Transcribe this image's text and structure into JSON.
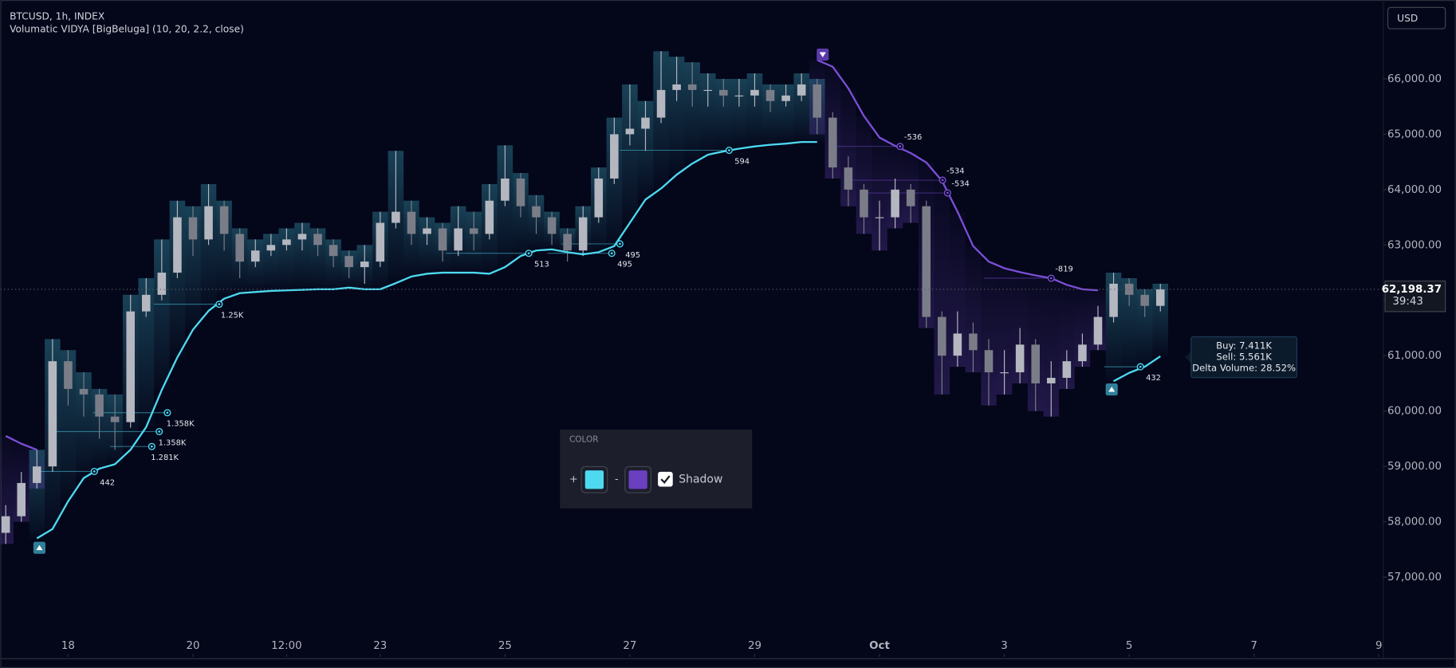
{
  "header": {
    "symbol": "BTCUSD, 1h, INDEX",
    "indicator": "Volumatic VIDYA [BigBeluga] (10, 20, 2.2, close)",
    "currency": "USD"
  },
  "chart_data": {
    "type": "candlestick",
    "x": [
      17,
      17.25,
      17.5,
      17.75,
      18,
      18.25,
      18.5,
      18.75,
      19,
      19.25,
      19.5,
      19.75,
      20,
      20.25,
      20.5,
      20.75,
      21,
      21.25,
      21.5,
      21.75,
      22,
      22.25,
      22.5,
      22.75,
      23,
      23.25,
      23.5,
      23.75,
      24,
      24.25,
      24.5,
      24.75,
      25,
      25.25,
      25.5,
      25.75,
      26,
      26.25,
      26.5,
      26.75,
      27,
      27.25,
      27.5,
      27.75,
      28,
      28.25,
      28.5,
      28.75,
      29,
      29.25,
      29.5,
      29.75,
      30,
      30.25,
      30.5,
      30.75,
      31,
      31.25,
      31.5,
      31.75,
      32,
      32.25,
      32.5,
      32.75,
      33,
      33.25,
      33.5,
      33.75,
      34,
      34.25,
      34.5,
      34.75,
      35,
      35.25,
      35.5
    ],
    "open": [
      57800,
      58100,
      58700,
      59000,
      60900,
      60400,
      60300,
      59900,
      59800,
      61800,
      62100,
      62500,
      63500,
      63100,
      63700,
      63200,
      62700,
      62900,
      63000,
      63100,
      63200,
      63000,
      62800,
      62600,
      62700,
      63400,
      63600,
      63200,
      63300,
      62900,
      63300,
      63200,
      63800,
      64200,
      63700,
      63500,
      63200,
      62900,
      63500,
      64200,
      65000,
      65100,
      65300,
      65800,
      65900,
      65800,
      65800,
      65700,
      65700,
      65800,
      65600,
      65700,
      65900,
      65300,
      64400,
      64000,
      63500,
      63500,
      64000,
      63700,
      61700,
      61000,
      61400,
      61100,
      60700,
      60700,
      61200,
      60500,
      60600,
      60900,
      61200,
      61700,
      62300,
      62100,
      61900
    ],
    "high": [
      58300,
      58900,
      59300,
      61300,
      61100,
      60700,
      60400,
      60300,
      62100,
      62400,
      63100,
      63800,
      63700,
      64100,
      63800,
      63300,
      63100,
      63200,
      63300,
      63400,
      63300,
      63100,
      62900,
      63000,
      63600,
      64700,
      63800,
      63500,
      63400,
      63700,
      63600,
      64100,
      64800,
      64300,
      63900,
      63600,
      63300,
      63700,
      64400,
      65300,
      65900,
      65600,
      66500,
      66400,
      66300,
      66100,
      66000,
      66000,
      66100,
      65900,
      65900,
      66100,
      66000,
      65400,
      64600,
      64100,
      63800,
      64200,
      64100,
      63800,
      61800,
      61800,
      61600,
      61300,
      61100,
      61500,
      61300,
      60900,
      61100,
      61400,
      61900,
      62500,
      62400,
      62200,
      62300
    ],
    "low": [
      57600,
      58000,
      58600,
      58900,
      60100,
      59900,
      59500,
      59300,
      59700,
      61700,
      62000,
      62400,
      62800,
      63000,
      62900,
      62400,
      62600,
      62800,
      62900,
      62900,
      62800,
      62600,
      62400,
      62300,
      62600,
      63300,
      63000,
      63000,
      62700,
      62800,
      62900,
      63100,
      63700,
      63500,
      63200,
      63000,
      62700,
      62800,
      63400,
      64100,
      64800,
      64700,
      65200,
      65600,
      65500,
      65500,
      65500,
      65500,
      65500,
      65400,
      65500,
      65600,
      65000,
      64200,
      63700,
      63200,
      62900,
      63300,
      63400,
      61500,
      60300,
      60800,
      60700,
      60100,
      60300,
      60500,
      60000,
      59900,
      60400,
      60800,
      61100,
      61600,
      61900,
      61700,
      61800
    ],
    "close": [
      58100,
      58700,
      59000,
      60900,
      60400,
      60300,
      59900,
      59800,
      61800,
      62100,
      62500,
      63500,
      63100,
      63700,
      63200,
      62700,
      62900,
      63000,
      63100,
      63200,
      63000,
      62800,
      62600,
      62700,
      63400,
      63600,
      63200,
      63300,
      62900,
      63300,
      63200,
      63800,
      64200,
      63700,
      63500,
      63200,
      62900,
      63500,
      64200,
      65000,
      65100,
      65300,
      65800,
      65900,
      65800,
      65800,
      65700,
      65700,
      65800,
      65600,
      65700,
      65900,
      65300,
      64400,
      64000,
      63500,
      63500,
      64000,
      63700,
      61700,
      61000,
      61400,
      61100,
      60700,
      60700,
      61200,
      60500,
      60600,
      60900,
      61200,
      61700,
      62300,
      62100,
      61900,
      62198.37
    ],
    "up_color": "#b4b7c0",
    "down_color": "#7a7d88",
    "last_label": "62,198.37",
    "countdown": "39:43",
    "overlays": [
      {
        "color": "#4dd9f0",
        "values": [
          null,
          null,
          57700,
          57870,
          58370,
          58790,
          58960,
          59040,
          59300,
          59710,
          60380,
          60970,
          61470,
          61810,
          62030,
          62130,
          62150,
          62170,
          62180,
          62190,
          62200,
          62200,
          62230,
          62200,
          62200,
          62310,
          62430,
          62480,
          62500,
          62500,
          62500,
          62480,
          62600,
          62800,
          62900,
          62920,
          62870,
          62830,
          62870,
          62980,
          63400,
          63820,
          64020,
          64270,
          64470,
          64630,
          64690,
          64740,
          64780,
          64810,
          64830,
          64860,
          64860,
          null,
          null,
          null,
          null,
          null,
          null,
          null,
          null,
          null,
          null,
          null,
          null,
          null,
          null,
          null,
          null,
          null,
          null,
          60540,
          60690,
          60800,
          60990
        ]
      },
      {
        "color": "#7b4fd6",
        "values": [
          59550,
          59410,
          59300,
          null,
          null,
          null,
          null,
          null,
          null,
          null,
          null,
          null,
          null,
          null,
          null,
          null,
          null,
          null,
          null,
          null,
          null,
          null,
          null,
          null,
          null,
          null,
          null,
          null,
          null,
          null,
          null,
          null,
          null,
          null,
          null,
          null,
          null,
          null,
          null,
          null,
          null,
          null,
          null,
          null,
          null,
          null,
          null,
          null,
          null,
          null,
          null,
          null,
          66340,
          66220,
          65830,
          65330,
          64940,
          64790,
          64660,
          64490,
          64160,
          63600,
          62980,
          62700,
          62580,
          62510,
          62450,
          62400,
          62280,
          62200,
          62180,
          null,
          null,
          null,
          null
        ]
      }
    ],
    "annotations": [
      {
        "x": 18.42,
        "x0": 17.54,
        "y": 58910,
        "text": "442",
        "color": "#4dd9f0"
      },
      {
        "x": 19.59,
        "x0": 18.4,
        "y": 59970,
        "text": "1.358K",
        "color": "#4dd9f0"
      },
      {
        "x": 19.46,
        "x0": 17.81,
        "y": 59630,
        "text": "1.358K",
        "color": "#4dd9f0"
      },
      {
        "x": 19.34,
        "x0": 18.67,
        "y": 59360,
        "text": "1.281K",
        "color": "#4dd9f0"
      },
      {
        "x": 20.42,
        "x0": 19.37,
        "y": 61930,
        "text": "1.25K",
        "color": "#4dd9f0"
      },
      {
        "x": 25.38,
        "x0": 24.05,
        "y": 62850,
        "text": "513",
        "color": "#4dd9f0"
      },
      {
        "x": 26.71,
        "x0": 25.68,
        "y": 62850,
        "text": "495",
        "color": "#4dd9f0"
      },
      {
        "x": 26.84,
        "x0": 25.9,
        "y": 63020,
        "text": "495",
        "color": "#4dd9f0"
      },
      {
        "x": 28.59,
        "x0": 26.84,
        "y": 64710,
        "text": "594",
        "color": "#4dd9f0"
      },
      {
        "x": 31.33,
        "x0": 30.29,
        "y": 64780,
        "text": "-536",
        "color": "#7b4fd6"
      },
      {
        "x": 32.01,
        "x0": 30.51,
        "y": 64170,
        "text": "-534",
        "color": "#7b4fd6"
      },
      {
        "x": 32.09,
        "x0": 30.81,
        "y": 63940,
        "text": "-534",
        "color": "#7b4fd6"
      },
      {
        "x": 33.75,
        "x0": 32.67,
        "y": 62400,
        "text": "-819",
        "color": "#7b4fd6"
      },
      {
        "x": 35.18,
        "x0": 34.6,
        "y": 60800,
        "text": "432",
        "color": "#4dd9f0"
      }
    ],
    "signals": [
      {
        "x": 17.54,
        "y": 57530,
        "direction": "up",
        "color": "#2f7f99"
      },
      {
        "x": 30.09,
        "y": 66440,
        "direction": "down",
        "color": "#5b3aa8"
      },
      {
        "x": 34.72,
        "y": 60390,
        "direction": "up",
        "color": "#2f7f99"
      }
    ],
    "xlim": [
      16.915,
      39.07
    ],
    "ylim": [
      55610,
      67425
    ],
    "xticks": [
      18,
      20,
      {
        "value": 21.5,
        "label": "12:00"
      },
      {
        "value": 23,
        "label": "23"
      },
      25,
      27,
      29,
      {
        "value": 31,
        "label": "Oct"
      },
      {
        "value": 33,
        "label": "3"
      },
      {
        "value": 35,
        "label": "5"
      },
      {
        "value": 37,
        "label": "7"
      },
      {
        "value": 39,
        "label": "9"
      }
    ],
    "yticks": [
      {
        "value": 57000,
        "label": "57,000.00"
      },
      {
        "value": 58000,
        "label": "58,000.00"
      },
      {
        "value": 59000,
        "label": "59,000.00"
      },
      {
        "value": 60000,
        "label": "60,000.00"
      },
      {
        "value": 61000,
        "label": "61,000.00"
      },
      {
        "value": 62000,
        "label": "62,000.00"
      },
      {
        "value": 63000,
        "label": "63,000.00"
      },
      {
        "value": 64000,
        "label": "64,000.00"
      },
      {
        "value": 65000,
        "label": "65,000.00"
      },
      {
        "value": 66000,
        "label": "66,000.00"
      }
    ],
    "grid": false
  },
  "info_box": {
    "buy": "Buy: 7.411K",
    "sell": "Sell: 5.561K",
    "delta": "Delta Volume: 28.52%"
  },
  "settings_popup": {
    "title": "COLOR",
    "plus": "+",
    "minus": "-",
    "up_color": "#4dd9f0",
    "down_color": "#6a3fc0",
    "shadow_label": "Shadow",
    "shadow_checked": true
  }
}
